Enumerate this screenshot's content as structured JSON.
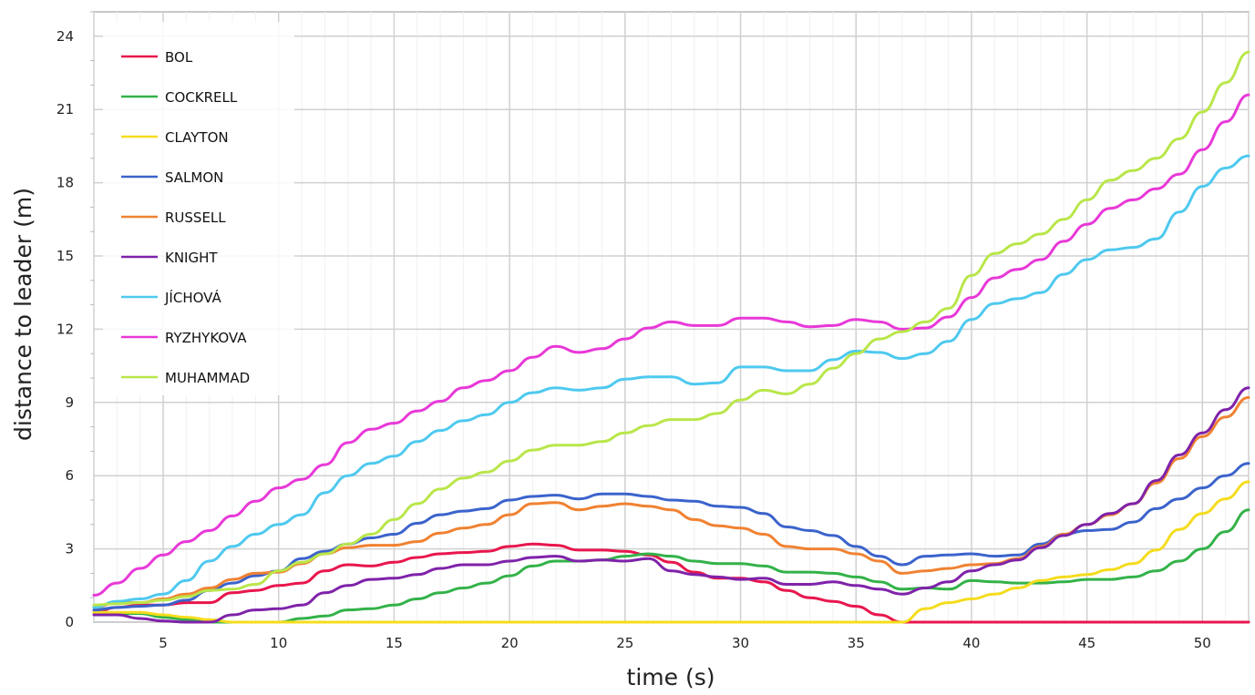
{
  "chart_data": {
    "type": "line",
    "xlabel": "time (s)",
    "ylabel": "distance to leader (m)",
    "xlim": [
      2,
      52
    ],
    "ylim": [
      0,
      25
    ],
    "xticks": [
      5,
      10,
      15,
      20,
      25,
      30,
      35,
      40,
      45,
      50
    ],
    "yticks": [
      0,
      3,
      6,
      9,
      12,
      15,
      18,
      21,
      24
    ],
    "grid": true,
    "legend": "top-left",
    "x": [
      2,
      3,
      4,
      5,
      6,
      7,
      8,
      9,
      10,
      11,
      12,
      13,
      14,
      15,
      16,
      17,
      18,
      19,
      20,
      21,
      22,
      23,
      24,
      25,
      26,
      27,
      28,
      29,
      30,
      31,
      32,
      33,
      34,
      35,
      36,
      37,
      38,
      39,
      40,
      41,
      42,
      43,
      44,
      45,
      46,
      47,
      48,
      49,
      50,
      51,
      52
    ],
    "series": [
      {
        "name": "BOL",
        "color": "#e8164c",
        "values": [
          0.4,
          0.6,
          0.7,
          0.7,
          0.8,
          0.8,
          1.2,
          1.3,
          1.5,
          1.6,
          2.1,
          2.35,
          2.3,
          2.45,
          2.65,
          2.8,
          2.85,
          2.9,
          3.1,
          3.2,
          3.15,
          2.95,
          2.95,
          2.9,
          2.75,
          2.45,
          2.05,
          1.8,
          1.8,
          1.65,
          1.3,
          1.0,
          0.85,
          0.65,
          0.3,
          0.0,
          0.0,
          0.0,
          0.0,
          0.0,
          0.0,
          0.0,
          0.0,
          0.0,
          0.0,
          0.0,
          0.0,
          0.0,
          0.0,
          0.0,
          0.0
        ]
      },
      {
        "name": "COCKRELL",
        "color": "#33b249",
        "values": [
          0.4,
          0.35,
          0.35,
          0.2,
          0.1,
          0.0,
          0.0,
          0.0,
          0.0,
          0.15,
          0.25,
          0.5,
          0.55,
          0.7,
          0.95,
          1.2,
          1.4,
          1.6,
          1.9,
          2.3,
          2.5,
          2.5,
          2.55,
          2.7,
          2.8,
          2.7,
          2.5,
          2.4,
          2.4,
          2.3,
          2.05,
          2.05,
          2.0,
          1.85,
          1.65,
          1.35,
          1.4,
          1.35,
          1.7,
          1.65,
          1.6,
          1.6,
          1.65,
          1.75,
          1.75,
          1.85,
          2.1,
          2.5,
          3.0,
          3.7,
          4.6
        ]
      },
      {
        "name": "CLAYTON",
        "color": "#f5dc1d",
        "values": [
          0.4,
          0.4,
          0.4,
          0.3,
          0.2,
          0.1,
          0.0,
          0.0,
          0.0,
          0.0,
          0.0,
          0.0,
          0.0,
          0.0,
          0.0,
          0.0,
          0.0,
          0.0,
          0.0,
          0.0,
          0.0,
          0.0,
          0.0,
          0.0,
          0.0,
          0.0,
          0.0,
          0.0,
          0.0,
          0.0,
          0.0,
          0.0,
          0.0,
          0.0,
          0.0,
          0.0,
          0.55,
          0.8,
          0.95,
          1.15,
          1.4,
          1.7,
          1.85,
          1.95,
          2.15,
          2.4,
          2.95,
          3.8,
          4.45,
          5.05,
          5.75
        ]
      },
      {
        "name": "SALMON",
        "color": "#3b63cc",
        "values": [
          0.5,
          0.6,
          0.65,
          0.7,
          0.9,
          1.3,
          1.6,
          1.9,
          2.1,
          2.6,
          2.9,
          3.2,
          3.45,
          3.6,
          4.05,
          4.4,
          4.55,
          4.65,
          5.0,
          5.15,
          5.2,
          5.05,
          5.25,
          5.25,
          5.15,
          5.0,
          4.95,
          4.75,
          4.7,
          4.45,
          3.9,
          3.75,
          3.55,
          3.1,
          2.7,
          2.35,
          2.7,
          2.75,
          2.8,
          2.7,
          2.75,
          3.2,
          3.6,
          3.75,
          3.8,
          4.1,
          4.65,
          5.05,
          5.5,
          6.0,
          6.5
        ]
      },
      {
        "name": "RUSSELL",
        "color": "#f08232",
        "values": [
          0.6,
          0.8,
          0.8,
          0.95,
          1.15,
          1.4,
          1.75,
          2.0,
          2.05,
          2.4,
          2.8,
          3.05,
          3.15,
          3.15,
          3.3,
          3.65,
          3.85,
          4.0,
          4.4,
          4.85,
          4.9,
          4.6,
          4.75,
          4.85,
          4.75,
          4.6,
          4.2,
          3.95,
          3.85,
          3.6,
          3.1,
          3.0,
          3.0,
          2.8,
          2.5,
          2.0,
          2.1,
          2.2,
          2.35,
          2.4,
          2.6,
          3.1,
          3.6,
          4.0,
          4.4,
          4.85,
          5.7,
          6.7,
          7.6,
          8.4,
          9.2
        ]
      },
      {
        "name": "KNIGHT",
        "color": "#7f22aa",
        "values": [
          0.3,
          0.3,
          0.15,
          0.05,
          0.0,
          0.0,
          0.3,
          0.5,
          0.55,
          0.7,
          1.2,
          1.5,
          1.75,
          1.8,
          1.95,
          2.2,
          2.35,
          2.35,
          2.5,
          2.65,
          2.7,
          2.5,
          2.55,
          2.5,
          2.6,
          2.1,
          1.95,
          1.85,
          1.75,
          1.8,
          1.55,
          1.55,
          1.65,
          1.5,
          1.35,
          1.15,
          1.4,
          1.65,
          2.1,
          2.35,
          2.55,
          3.05,
          3.55,
          4.0,
          4.45,
          4.85,
          5.8,
          6.85,
          7.75,
          8.7,
          9.6
        ]
      },
      {
        "name": "JÍCHOVÁ",
        "color": "#4ec9ef",
        "values": [
          0.6,
          0.85,
          0.95,
          1.15,
          1.7,
          2.5,
          3.1,
          3.6,
          4.0,
          4.4,
          5.3,
          6.0,
          6.5,
          6.8,
          7.4,
          7.85,
          8.25,
          8.5,
          9.0,
          9.4,
          9.6,
          9.5,
          9.6,
          9.95,
          10.05,
          10.05,
          9.75,
          9.8,
          10.45,
          10.45,
          10.3,
          10.3,
          10.75,
          11.1,
          11.05,
          10.8,
          11.0,
          11.5,
          12.4,
          13.05,
          13.25,
          13.5,
          14.25,
          14.85,
          15.25,
          15.35,
          15.7,
          16.8,
          17.85,
          18.6,
          19.1
        ]
      },
      {
        "name": "RYZHYKOVA",
        "color": "#e838d8",
        "values": [
          1.1,
          1.6,
          2.2,
          2.75,
          3.3,
          3.75,
          4.35,
          4.95,
          5.5,
          5.85,
          6.45,
          7.35,
          7.9,
          8.15,
          8.65,
          9.05,
          9.6,
          9.9,
          10.3,
          10.85,
          11.3,
          11.05,
          11.2,
          11.6,
          12.05,
          12.3,
          12.15,
          12.15,
          12.45,
          12.45,
          12.3,
          12.1,
          12.15,
          12.4,
          12.3,
          12.0,
          12.05,
          12.5,
          13.3,
          14.1,
          14.45,
          14.85,
          15.6,
          16.3,
          16.95,
          17.3,
          17.75,
          18.35,
          19.35,
          20.5,
          21.6
        ]
      },
      {
        "name": "MUHAMMAD",
        "color": "#b9e64a",
        "values": [
          0.7,
          0.75,
          0.8,
          0.9,
          1.05,
          1.3,
          1.35,
          1.55,
          2.1,
          2.45,
          2.8,
          3.2,
          3.6,
          4.2,
          4.85,
          5.45,
          5.9,
          6.15,
          6.6,
          7.05,
          7.25,
          7.25,
          7.4,
          7.75,
          8.05,
          8.3,
          8.3,
          8.55,
          9.1,
          9.5,
          9.35,
          9.75,
          10.4,
          11.0,
          11.6,
          11.9,
          12.3,
          12.85,
          14.2,
          15.1,
          15.5,
          15.9,
          16.5,
          17.3,
          18.1,
          18.5,
          19.0,
          19.8,
          20.9,
          22.1,
          23.35
        ]
      }
    ]
  }
}
